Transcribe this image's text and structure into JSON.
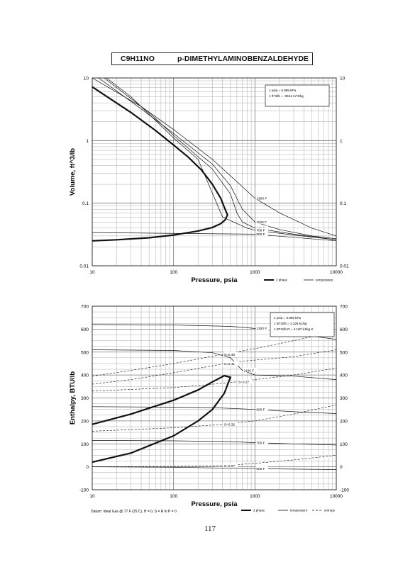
{
  "header": {
    "formula": "C9H11NO",
    "compound": "p-DIMETHYLAMINOBENZALDEHYDE"
  },
  "footer": {
    "datum": "Datum: Ideal Gas @ 77 F (25 C), H = 0, S = R ln P = 0",
    "page_number": "117"
  },
  "chart_data": [
    {
      "type": "line",
      "title": "",
      "xlabel": "Pressure, psia",
      "ylabel": "Volume, ft^3/lb",
      "xscale": "log",
      "yscale": "log",
      "xlim": [
        10,
        10000
      ],
      "ylim": [
        0.01,
        10
      ],
      "grid": true,
      "x_tick_labels": [
        "10",
        "100",
        "1000",
        "10000"
      ],
      "y_tick_labels": [
        "0.01",
        "0.1",
        "1",
        "10"
      ],
      "conversions": [
        "1 psia = 6.895 kPa",
        "1 ft^3/lb = .0624 m^3/kg"
      ],
      "legend": {
        "placement": "bottom-right",
        "entries": [
          "2 phase",
          "temperature"
        ]
      },
      "series": [
        {
          "name": "2 phase",
          "style": "thick",
          "x": [
            10,
            30,
            60,
            100,
            150,
            220,
            300,
            380,
            430,
            460,
            430,
            380,
            300,
            200,
            100,
            50,
            20,
            10
          ],
          "y": [
            7.2,
            2.8,
            1.45,
            0.85,
            0.55,
            0.34,
            0.2,
            0.12,
            0.08,
            0.065,
            0.054,
            0.047,
            0.041,
            0.036,
            0.031,
            0.028,
            0.026,
            0.025
          ]
        },
        {
          "name": "1300 F",
          "label_x": 1000,
          "x": [
            10,
            40,
            100,
            300,
            600,
            1000,
            2000,
            5000,
            10000
          ],
          "y": [
            10,
            3.5,
            1.5,
            0.5,
            0.22,
            0.12,
            0.07,
            0.04,
            0.03
          ]
        },
        {
          "name": "1100 F",
          "label_x": 1000,
          "x": [
            12,
            40,
            100,
            300,
            500,
            700,
            1000,
            2000,
            5000,
            10000
          ],
          "y": [
            10,
            3.2,
            1.3,
            0.42,
            0.19,
            0.08,
            0.05,
            0.038,
            0.03,
            0.027
          ]
        },
        {
          "name": "900 F",
          "label_x": 1000,
          "x": [
            14,
            50,
            100,
            300,
            500,
            600,
            700,
            1000,
            3000,
            10000
          ],
          "y": [
            10,
            2.8,
            1.2,
            0.35,
            0.14,
            0.07,
            0.05,
            0.04,
            0.032,
            0.026
          ]
        },
        {
          "name": "700 F",
          "label_x": 1000,
          "x": [
            15,
            30,
            100,
            200,
            400,
            800,
            1000,
            3000,
            10000
          ],
          "y": [
            10,
            5,
            1.1,
            0.5,
            0.06,
            0.04,
            0.037,
            0.031,
            0.026
          ]
        },
        {
          "name": "500 F",
          "label_x": 1000,
          "x": [
            10,
            1000,
            10000
          ],
          "y": [
            0.034,
            0.032,
            0.025
          ]
        }
      ]
    },
    {
      "type": "line",
      "title": "",
      "xlabel": "Pressure, psia",
      "ylabel": "Enthalpy, BTU/lb",
      "xscale": "log",
      "yscale": "linear",
      "xlim": [
        10,
        10000
      ],
      "ylim": [
        -100,
        700
      ],
      "grid": true,
      "x_tick_labels": [
        "10",
        "100",
        "1000",
        "10000"
      ],
      "y_tick_labels": [
        "-100",
        "0",
        "100",
        "200",
        "300",
        "400",
        "500",
        "600",
        "700"
      ],
      "conversions": [
        "1 psia = 6.895 kPa",
        "1 BTU/lb = 2.326 kJ/kg",
        "1 BTU/lb R = 4.187 kJ/kg K"
      ],
      "legend": {
        "placement": "bottom-right",
        "entries": [
          "2 phase",
          "temperature",
          "entropy"
        ]
      },
      "series": [
        {
          "name": "2 phase",
          "style": "thick",
          "x": [
            10,
            30,
            100,
            200,
            300,
            420,
            500,
            420,
            300,
            200,
            100,
            30,
            10
          ],
          "y": [
            185,
            230,
            290,
            335,
            370,
            397,
            390,
            320,
            250,
            200,
            135,
            60,
            20
          ]
        },
        {
          "name": "1300 F",
          "label_x": 1000,
          "x": [
            10,
            100,
            500,
            1000,
            2000,
            5000,
            10000
          ],
          "y": [
            620,
            618,
            612,
            603,
            590,
            570,
            555
          ]
        },
        {
          "name": "1100 F",
          "label_x": 700,
          "x": [
            10,
            100,
            300,
            500,
            700,
            1000,
            3000,
            10000
          ],
          "y": [
            510,
            507,
            497,
            475,
            420,
            400,
            395,
            380
          ]
        },
        {
          "name": "900 F",
          "label_x": 1000,
          "x": [
            10,
            100,
            300,
            1000,
            3000,
            10000
          ],
          "y": [
            262,
            260,
            258,
            250,
            240,
            232
          ]
        },
        {
          "name": "700 F",
          "label_x": 1000,
          "x": [
            10,
            100,
            500,
            1000,
            3000,
            10000
          ],
          "y": [
            115,
            113,
            110,
            105,
            100,
            95
          ]
        },
        {
          "name": "500 F",
          "label_x": 1000,
          "x": [
            10,
            100,
            1000,
            3000,
            10000
          ],
          "y": [
            0,
            -2,
            -8,
            -10,
            -12
          ]
        },
        {
          "name": "S=0.45",
          "kind": "entropy",
          "label_x": 400,
          "x": [
            10,
            30,
            100,
            300,
            1000,
            3000,
            10000
          ],
          "y": [
            395,
            420,
            450,
            482,
            515,
            550,
            590
          ]
        },
        {
          "name": "S=0.41",
          "kind": "entropy",
          "label_x": 400,
          "x": [
            10,
            30,
            100,
            300,
            500,
            1000,
            3000,
            10000
          ],
          "y": [
            360,
            380,
            410,
            440,
            455,
            465,
            480,
            510
          ]
        },
        {
          "name": "S=0.37",
          "kind": "entropy",
          "label_x": 600,
          "x": [
            10,
            100,
            300,
            600,
            1000,
            3000,
            10000
          ],
          "y": [
            330,
            345,
            360,
            370,
            380,
            400,
            430
          ]
        },
        {
          "name": "S=0.32",
          "kind": "entropy",
          "label_x": 400,
          "x": [
            10,
            100,
            400,
            1000,
            3000,
            10000
          ],
          "y": [
            155,
            170,
            185,
            200,
            230,
            270
          ]
        },
        {
          "name": "S=0.07",
          "kind": "entropy",
          "label_x": 400,
          "x": [
            10,
            100,
            400,
            1000,
            3000,
            10000
          ],
          "y": [
            0,
            2,
            5,
            15,
            30,
            50
          ]
        }
      ]
    }
  ]
}
